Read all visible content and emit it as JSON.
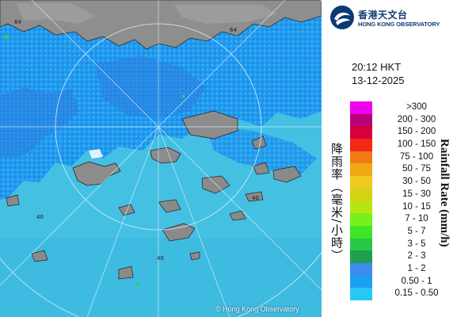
{
  "map": {
    "copyright": "© Hong Kong Observatory",
    "ring_labels": [
      "64",
      "40",
      "40",
      "40",
      "64"
    ],
    "colors": {
      "sea": "#42bfe0",
      "rain_light": "#1a9bf0",
      "rain_mid": "#2f7fe4",
      "land": "#8a8a8a",
      "ring": "#d8f2fa"
    }
  },
  "header": {
    "logo_cn": "香港天文台",
    "logo_en": "HONG KONG OBSERVATORY",
    "time": "20:12 HKT",
    "date": "13-12-2025"
  },
  "legend": {
    "title_cn": "降雨率（毫米/小時）",
    "title_en": "Rainfall Rate (mm/h)",
    "items": [
      {
        "label": ">300",
        "color": "#f000f0"
      },
      {
        "label": "200 - 300",
        "color": "#b8007a"
      },
      {
        "label": "150 - 200",
        "color": "#d8003c"
      },
      {
        "label": "100 - 150",
        "color": "#f02a14"
      },
      {
        "label": "75 - 100",
        "color": "#f07a14"
      },
      {
        "label": "50 - 75",
        "color": "#f0a814"
      },
      {
        "label": "30 - 50",
        "color": "#f0c81e"
      },
      {
        "label": "15 - 30",
        "color": "#d4d214"
      },
      {
        "label": "10 - 15",
        "color": "#b4e614"
      },
      {
        "label": "7 - 10",
        "color": "#78f01e"
      },
      {
        "label": "5 - 7",
        "color": "#3ee628"
      },
      {
        "label": "3 - 5",
        "color": "#28c846"
      },
      {
        "label": "2 - 3",
        "color": "#1ea050"
      },
      {
        "label": "1 - 2",
        "color": "#3c8cf0"
      },
      {
        "label": "0.50 - 1",
        "color": "#1ea0f0"
      },
      {
        "label": "0.15 - 0.50",
        "color": "#28c8f5"
      }
    ]
  }
}
